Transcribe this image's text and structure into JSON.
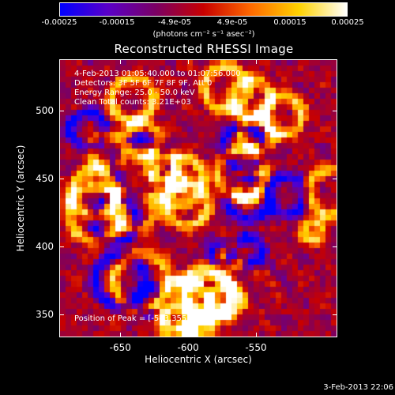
{
  "colorbar": {
    "ticks": [
      "-0.00025",
      "-0.00015",
      "-4.9e-05",
      "4.9e-05",
      "0.00015",
      "0.00025"
    ],
    "units": "(photons cm⁻² s⁻¹ asec⁻²)",
    "colors": [
      "#0000ff",
      "#5a00c8",
      "#7a0064",
      "#c80000",
      "#ff6a00",
      "#ffd200",
      "#ffffff"
    ]
  },
  "title": "Reconstructed RHESSI Image",
  "info": {
    "time_range": "4-Feb-2013 01:05:40.000 to 01:07:56.000",
    "detectors": "Detectors: 3F 5F 6F 7F 8F 9F, Att 0",
    "energy": "Energy Range: 25.0 - 50.0 keV",
    "clean": "Clean     Total counts: 3.21E+03",
    "peak": "Position of Peak = [-543,355]"
  },
  "axes": {
    "xlabel": "Heliocentric X (arcsec)",
    "ylabel": "Heliocentric Y (arcsec)",
    "xticks": [
      "-650",
      "-600",
      "-550"
    ],
    "yticks": [
      "500",
      "450",
      "400",
      "350"
    ],
    "xrange": [
      -695,
      -490
    ],
    "yrange": [
      333,
      538
    ]
  },
  "timestamp": "3-Feb-2013 22:06"
}
